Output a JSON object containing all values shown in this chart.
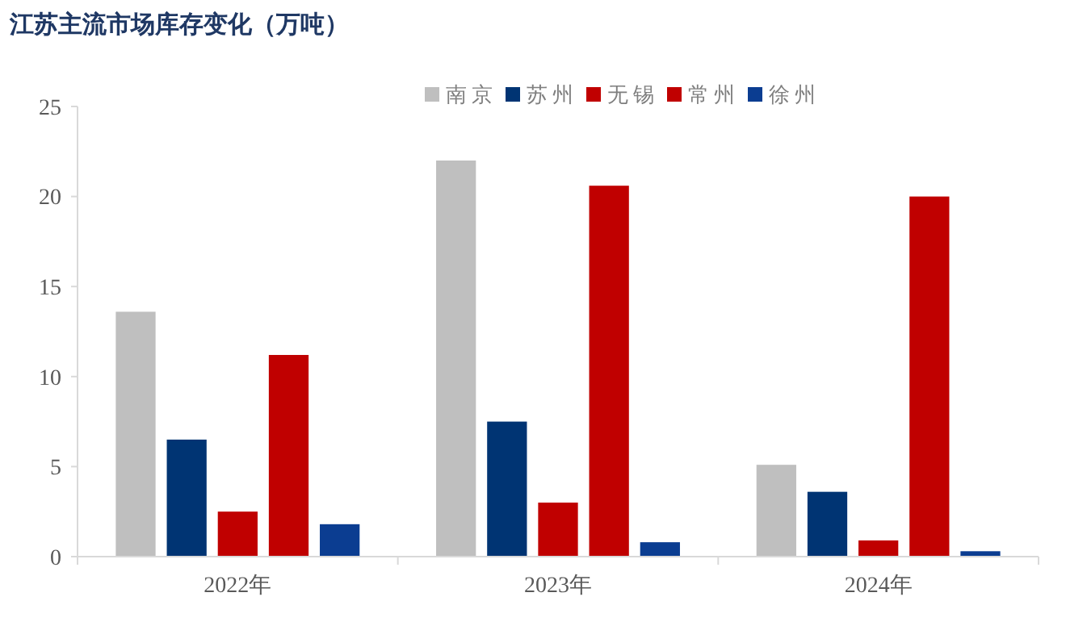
{
  "chart_data": {
    "type": "bar",
    "title": "江苏主流市场库存变化（万吨）",
    "categories": [
      "2022年",
      "2023年",
      "2024年"
    ],
    "series": [
      {
        "name": "南京",
        "color": "#bfbfbf",
        "values": [
          13.6,
          22.0,
          5.1
        ]
      },
      {
        "name": "苏州",
        "color": "#003473",
        "values": [
          6.5,
          7.5,
          3.6
        ]
      },
      {
        "name": "无锡",
        "color": "#c00000",
        "values": [
          2.5,
          3.0,
          0.9
        ]
      },
      {
        "name": "常州",
        "color": "#c00000",
        "values": [
          11.2,
          20.6,
          20.0
        ]
      },
      {
        "name": "徐州",
        "color": "#0b3d91",
        "values": [
          1.8,
          0.8,
          0.3
        ]
      }
    ],
    "ylim": [
      0,
      25
    ],
    "yticks": [
      0,
      5,
      10,
      15,
      20,
      25
    ],
    "grid": false,
    "legend": "top right"
  }
}
